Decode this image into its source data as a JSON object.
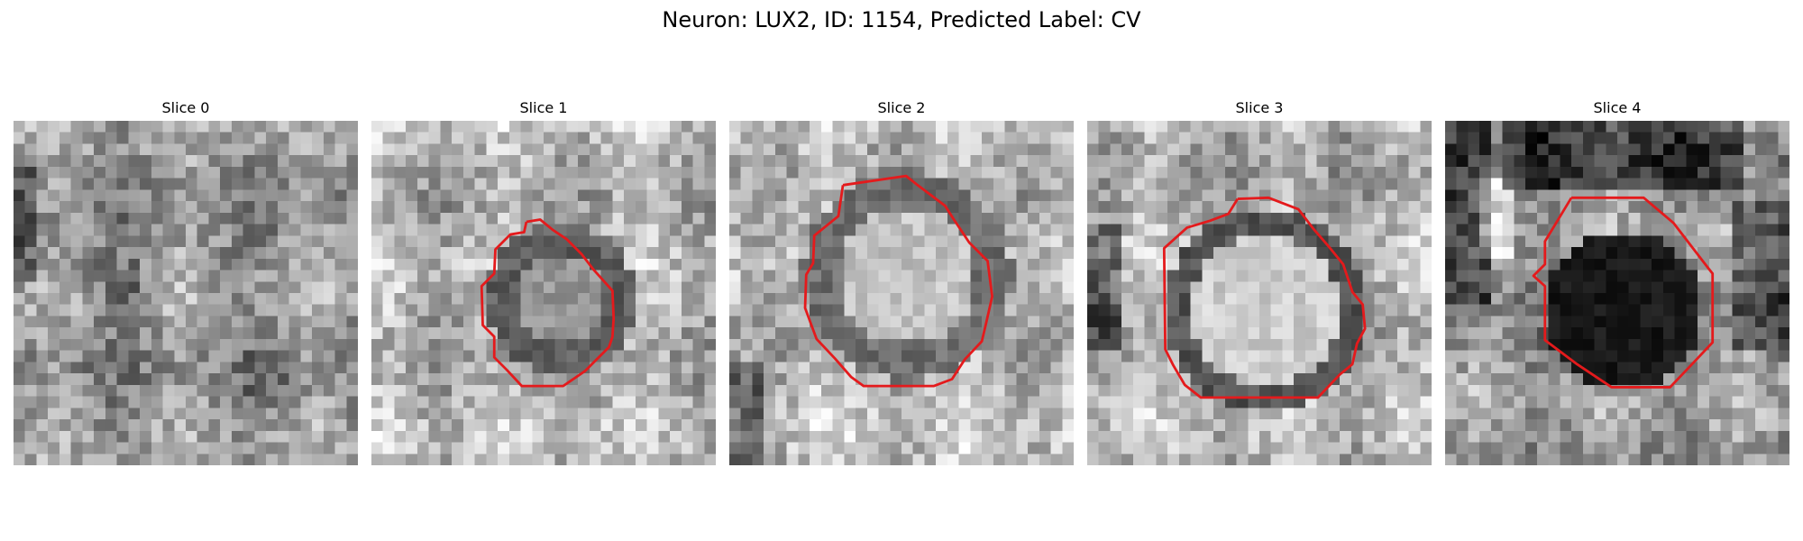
{
  "figure": {
    "title": "Neuron: LUX2, ID: 1154, Predicted Label: CV"
  },
  "colors": {
    "contour": "#e41a1c",
    "background": "#ffffff"
  },
  "panels": [
    {
      "title": "Slice 0",
      "has_contour": false,
      "tone": "mottled grey texture, no visible ring"
    },
    {
      "title": "Slice 1",
      "has_contour": true,
      "tone": "small dark ring around a lighter center"
    },
    {
      "title": "Slice 2",
      "has_contour": true,
      "tone": "large dark ring around a light center"
    },
    {
      "title": "Slice 3",
      "has_contour": true,
      "tone": "light disc with a thin dark rim"
    },
    {
      "title": "Slice 4",
      "has_contour": true,
      "tone": "dark filled disc"
    }
  ]
}
